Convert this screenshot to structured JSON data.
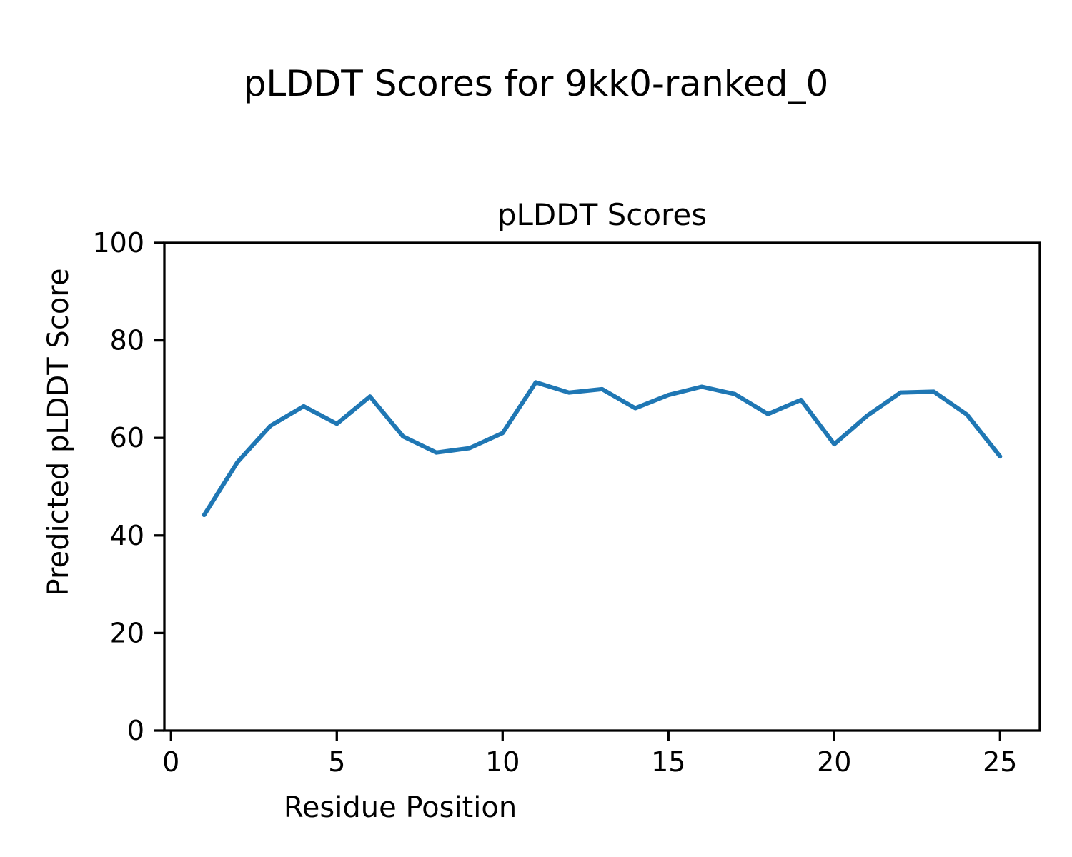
{
  "chart_data": {
    "type": "line",
    "suptitle": "pLDDT Scores for 9kk0-ranked_0",
    "title": "pLDDT Scores",
    "xlabel": "Residue Position",
    "ylabel": "Predicted pLDDT Score",
    "xlim": [
      -0.2,
      26.2
    ],
    "ylim": [
      0,
      100
    ],
    "x_ticks": [
      0,
      5,
      10,
      15,
      20,
      25
    ],
    "y_ticks": [
      0,
      20,
      40,
      60,
      80,
      100
    ],
    "grid": false,
    "legend": "none",
    "line_color": "#1f77b4",
    "axis_color": "#000000",
    "series": [
      {
        "name": "pLDDT",
        "x": [
          1,
          2,
          3,
          4,
          5,
          6,
          7,
          8,
          9,
          10,
          11,
          12,
          13,
          14,
          15,
          16,
          17,
          18,
          19,
          20,
          21,
          22,
          23,
          24,
          25
        ],
        "y": [
          44.2,
          55.0,
          62.5,
          66.5,
          62.9,
          68.5,
          60.3,
          57.0,
          57.9,
          61.0,
          71.4,
          69.3,
          70.0,
          66.1,
          68.8,
          70.5,
          69.0,
          64.9,
          67.8,
          58.7,
          64.6,
          69.3,
          69.5,
          64.8,
          56.2
        ]
      }
    ]
  }
}
